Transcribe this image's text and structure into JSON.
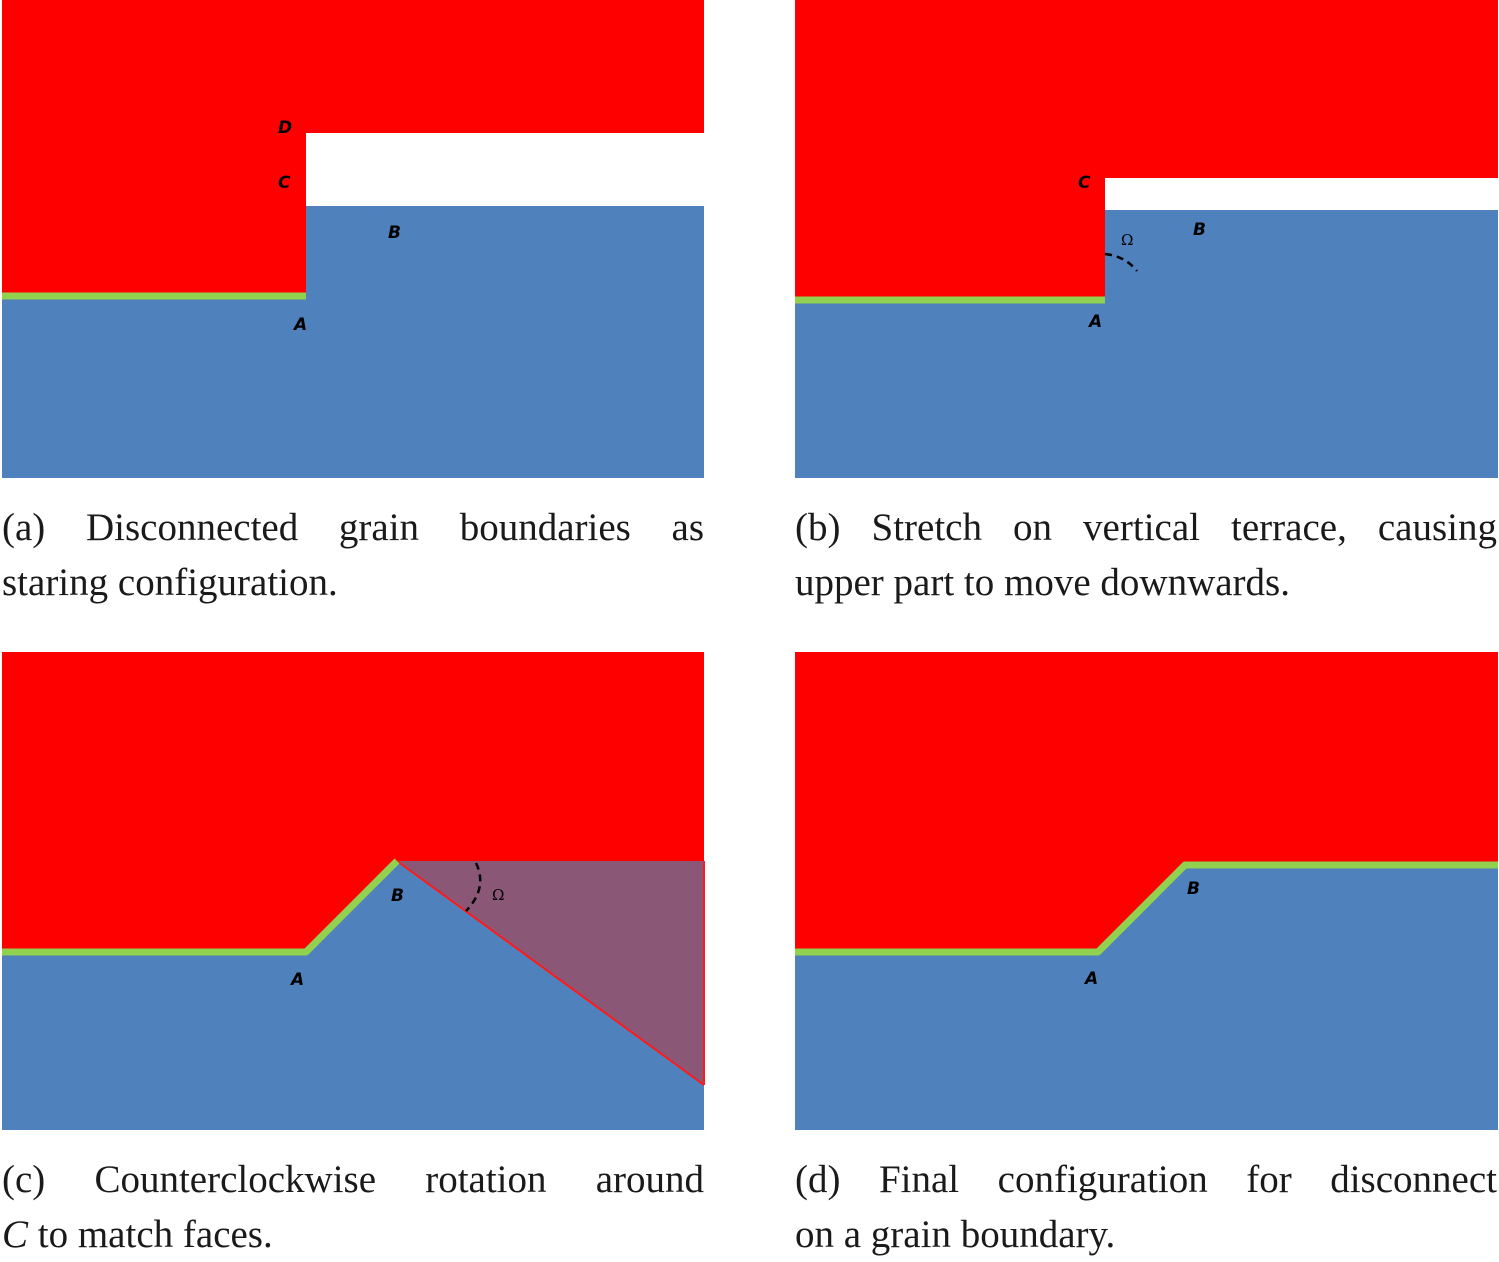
{
  "colors": {
    "upper_grain": "#ff0000",
    "lower_grain": "#4f81bd",
    "grain_boundary": "#92d050",
    "rotated_region": "#8b5777",
    "rotation_edge": "#ff1a1a"
  },
  "panels": [
    {
      "id": "a",
      "labels": {
        "A": "A",
        "B": "B",
        "C": "C",
        "D": "D"
      },
      "caption": {
        "line1": "(a) Disconnected grain boundaries as",
        "line2": "staring configuration."
      }
    },
    {
      "id": "b",
      "labels": {
        "A": "A",
        "B": "B",
        "C": "C",
        "angle": "Ω"
      },
      "caption": {
        "line1": "(b) Stretch on vertical terrace, causing",
        "line2": "upper part to move downwards."
      }
    },
    {
      "id": "c",
      "labels": {
        "A": "A",
        "B": "B",
        "angle": "Ω"
      },
      "caption": {
        "line1": "(c) Counterclockwise rotation around",
        "line2_math": "C",
        "line2_rest": " to match faces."
      }
    },
    {
      "id": "d",
      "labels": {
        "A": "A",
        "B": "B"
      },
      "caption": {
        "line1": "(d) Final configuration for disconnect",
        "line2": "on a grain boundary."
      }
    }
  ]
}
